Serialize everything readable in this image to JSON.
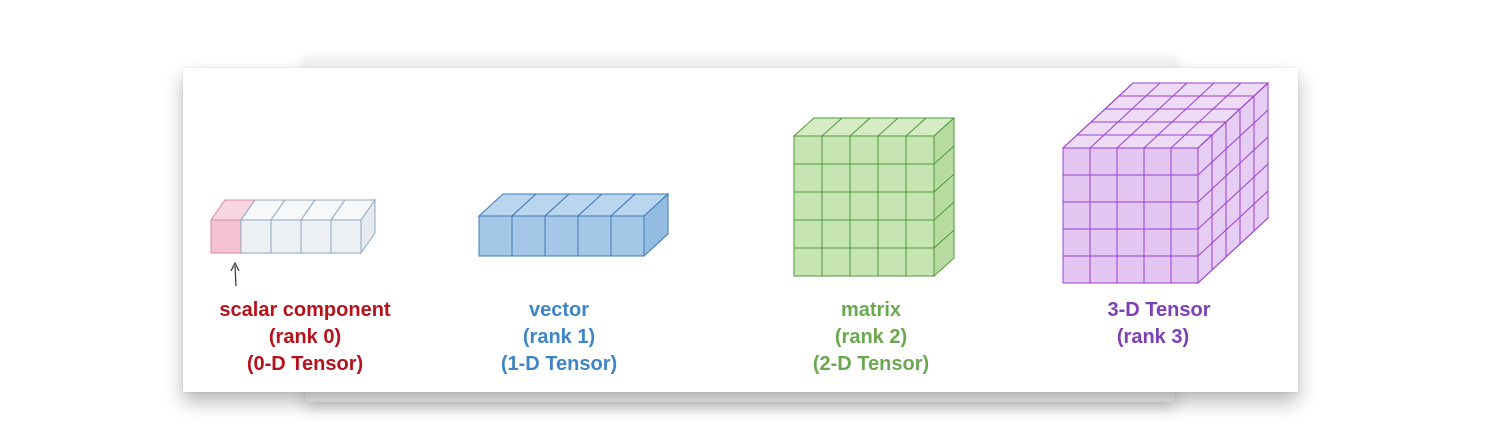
{
  "colors": {
    "scalar": "#b5121b",
    "vector": "#3d85c6",
    "matrix": "#6aa84f",
    "tensor3": "#7e3fb5",
    "scalar_fill": "#f4c2d3",
    "vector_fill": "#a6c8e8",
    "matrix_fill": "#c7e4b3",
    "tensor3_fill": "#e3c6f2"
  },
  "items": [
    {
      "title": "scalar component",
      "rank": "(rank 0)",
      "tensor": "(0-D Tensor)"
    },
    {
      "title": "vector",
      "rank": "(rank 1)",
      "tensor": "(1-D Tensor)"
    },
    {
      "title": "matrix",
      "rank": "(rank 2)",
      "tensor": "(2-D Tensor)"
    },
    {
      "title": "3-D Tensor",
      "rank": "(rank 3)"
    }
  ]
}
